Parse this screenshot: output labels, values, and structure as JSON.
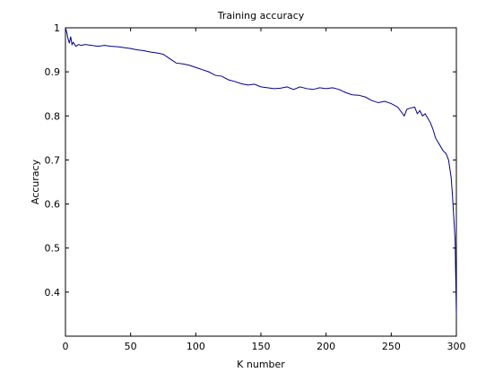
{
  "chart_data": {
    "type": "line",
    "title": "Training accuracy",
    "xlabel": "K number",
    "ylabel": "Accuracy",
    "xlim": [
      0,
      300
    ],
    "ylim": [
      0.3,
      1.0
    ],
    "xticks": [
      0,
      50,
      100,
      150,
      200,
      250,
      300
    ],
    "yticks": [
      0.4,
      0.5,
      0.6,
      0.7,
      0.8,
      0.9,
      1
    ],
    "xtick_labels": [
      "0",
      "50",
      "100",
      "150",
      "200",
      "250",
      "300"
    ],
    "ytick_labels": [
      "0.4",
      "0.5",
      "0.6",
      "0.7",
      "0.8",
      "0.9",
      "1"
    ],
    "grid": false,
    "series": [
      {
        "color": "#00008b",
        "x": [
          0,
          1,
          2,
          3,
          4,
          5,
          6,
          8,
          10,
          12,
          15,
          20,
          25,
          30,
          35,
          40,
          45,
          50,
          55,
          60,
          65,
          70,
          75,
          80,
          85,
          90,
          95,
          100,
          105,
          110,
          115,
          120,
          125,
          130,
          135,
          140,
          145,
          150,
          155,
          160,
          165,
          170,
          175,
          180,
          185,
          190,
          195,
          200,
          205,
          210,
          215,
          220,
          225,
          230,
          235,
          240,
          245,
          250,
          255,
          260,
          262,
          265,
          268,
          270,
          272,
          274,
          276,
          278,
          280,
          282,
          284,
          286,
          288,
          290,
          292,
          294,
          295,
          296,
          297,
          298,
          299,
          300
        ],
        "y": [
          1.0,
          0.99,
          0.975,
          0.965,
          0.98,
          0.962,
          0.967,
          0.958,
          0.962,
          0.96,
          0.962,
          0.96,
          0.958,
          0.96,
          0.958,
          0.957,
          0.955,
          0.953,
          0.95,
          0.948,
          0.945,
          0.943,
          0.94,
          0.93,
          0.92,
          0.918,
          0.915,
          0.91,
          0.905,
          0.9,
          0.892,
          0.89,
          0.882,
          0.878,
          0.873,
          0.87,
          0.872,
          0.866,
          0.864,
          0.862,
          0.863,
          0.866,
          0.86,
          0.866,
          0.862,
          0.86,
          0.864,
          0.862,
          0.864,
          0.86,
          0.853,
          0.848,
          0.847,
          0.843,
          0.835,
          0.83,
          0.833,
          0.828,
          0.82,
          0.8,
          0.815,
          0.818,
          0.82,
          0.805,
          0.812,
          0.8,
          0.805,
          0.795,
          0.785,
          0.77,
          0.75,
          0.74,
          0.73,
          0.72,
          0.715,
          0.7,
          0.68,
          0.66,
          0.62,
          0.57,
          0.52,
          0.35
        ]
      }
    ]
  }
}
